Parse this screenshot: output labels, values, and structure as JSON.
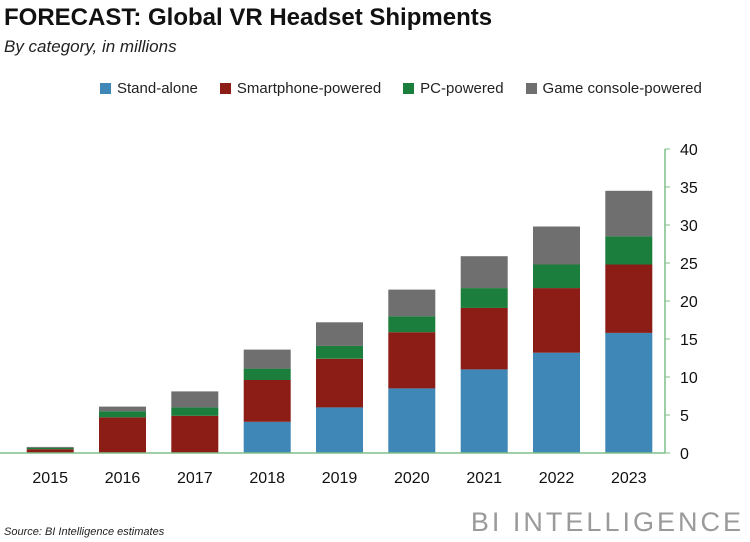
{
  "chart_data": {
    "type": "bar",
    "stacked": true,
    "title": "FORECAST: Global VR Headset Shipments",
    "subtitle": "By category, in millions",
    "categories": [
      "2015",
      "2016",
      "2017",
      "2018",
      "2019",
      "2020",
      "2021",
      "2022",
      "2023"
    ],
    "series": [
      {
        "name": "Stand-alone",
        "color": "#3f87b6",
        "values": [
          0,
          0,
          0,
          4.1,
          6.0,
          8.5,
          11.0,
          13.2,
          15.8
        ]
      },
      {
        "name": "Smartphone-powered",
        "color": "#8b1c16",
        "values": [
          0.5,
          4.7,
          4.9,
          5.5,
          6.4,
          7.4,
          8.1,
          8.5,
          9.0
        ]
      },
      {
        "name": "PC-powered",
        "color": "#1c7e3c",
        "values": [
          0.2,
          0.8,
          1.1,
          1.5,
          1.7,
          2.1,
          2.6,
          3.1,
          3.7
        ]
      },
      {
        "name": "Game console-powered",
        "color": "#6f6f6f",
        "values": [
          0.1,
          0.6,
          2.1,
          2.5,
          3.1,
          3.5,
          4.2,
          5.0,
          6.0
        ]
      }
    ],
    "xlabel": "",
    "ylabel": "",
    "ylim": [
      0,
      40
    ],
    "yticks": [
      0,
      5,
      10,
      15,
      20,
      25,
      30,
      35,
      40
    ],
    "axis_color": "#7fbf8a",
    "legend_position": "top"
  },
  "footer": {
    "source": "Source: BI Intelligence estimates",
    "brand": "BI INTELLIGENCE"
  }
}
